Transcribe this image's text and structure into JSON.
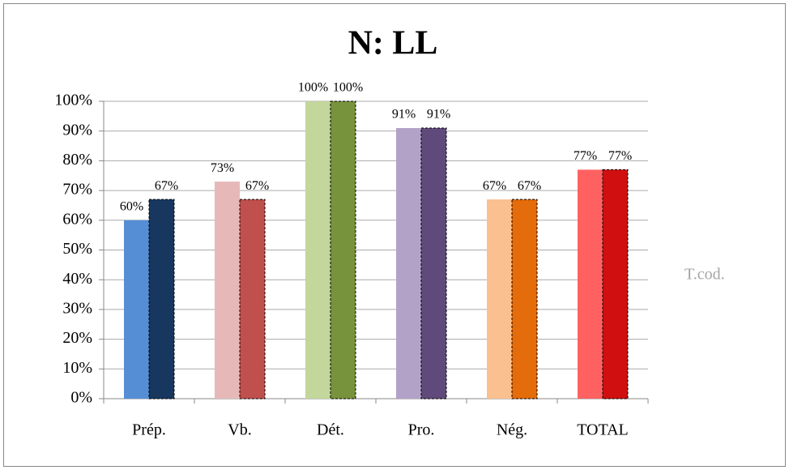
{
  "chart_data": {
    "type": "bar",
    "title": "N: LL",
    "categories": [
      "Prép.",
      "Vb.",
      "Dét.",
      "Pro.",
      "Nég.",
      "TOTAL"
    ],
    "series": [
      {
        "colors": [
          "#558ed5",
          "#e6b9b8",
          "#c3d69b",
          "#b3a2c7",
          "#fac090",
          "#ff6161"
        ],
        "values": [
          60,
          73,
          100,
          91,
          67,
          77
        ],
        "value_labels": [
          "60%",
          "73%",
          "100%",
          "91%",
          "67%",
          "77%"
        ]
      },
      {
        "name": "T.cod.",
        "colors": [
          "#17375e",
          "#c0504d",
          "#77933c",
          "#604a7b",
          "#e46c0a",
          "#d01010"
        ],
        "values": [
          67,
          67,
          100,
          91,
          67,
          77
        ],
        "value_labels": [
          "67%",
          "67%",
          "100%",
          "91%",
          "67%",
          "77%"
        ]
      }
    ],
    "ylim": [
      0,
      100
    ],
    "yticks": [
      {
        "value": 0,
        "label": "0%"
      },
      {
        "value": 10,
        "label": "10%"
      },
      {
        "value": 20,
        "label": "20%"
      },
      {
        "value": 30,
        "label": "30%"
      },
      {
        "value": 40,
        "label": "40%"
      },
      {
        "value": 50,
        "label": "50%"
      },
      {
        "value": 60,
        "label": "60%"
      },
      {
        "value": 70,
        "label": "70%"
      },
      {
        "value": 80,
        "label": "80%"
      },
      {
        "value": 90,
        "label": "90%"
      },
      {
        "value": 100,
        "label": "100%"
      }
    ],
    "grid": true,
    "legend_position": "right"
  }
}
